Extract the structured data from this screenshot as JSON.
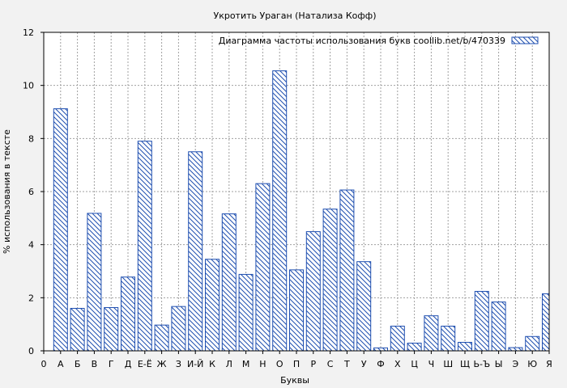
{
  "chart_data": {
    "type": "bar",
    "title": "Укротить Ураган (Натализа Кофф)",
    "xlabel": "Буквы",
    "ylabel": "% использования в тексте",
    "legend": "Диаграмма частоты использования букв  coollib.net/b/470339",
    "legend_position": "top-right",
    "grid": true,
    "ylim": [
      0,
      12
    ],
    "yticks": [
      "0",
      "2",
      "4",
      "6",
      "8",
      "10",
      "12"
    ],
    "categories": [
      "0",
      "А",
      "Б",
      "В",
      "Г",
      "Д",
      "Е-Ё",
      "Ж",
      "З",
      "И-Й",
      "К",
      "Л",
      "М",
      "Н",
      "О",
      "П",
      "Р",
      "С",
      "Т",
      "У",
      "Ф",
      "Х",
      "Ц",
      "Ч",
      "Ш",
      "Щ",
      "Ь-Ъ",
      "Ы",
      "Э",
      "Ю",
      "Я"
    ],
    "values": [
      null,
      9.12,
      1.6,
      5.18,
      1.63,
      2.78,
      7.9,
      0.97,
      1.67,
      7.5,
      3.45,
      5.16,
      2.88,
      6.3,
      10.55,
      3.05,
      4.49,
      5.34,
      6.06,
      3.36,
      0.11,
      0.93,
      0.29,
      1.32,
      0.93,
      0.32,
      2.24,
      1.84,
      0.12,
      0.54,
      2.15
    ]
  }
}
